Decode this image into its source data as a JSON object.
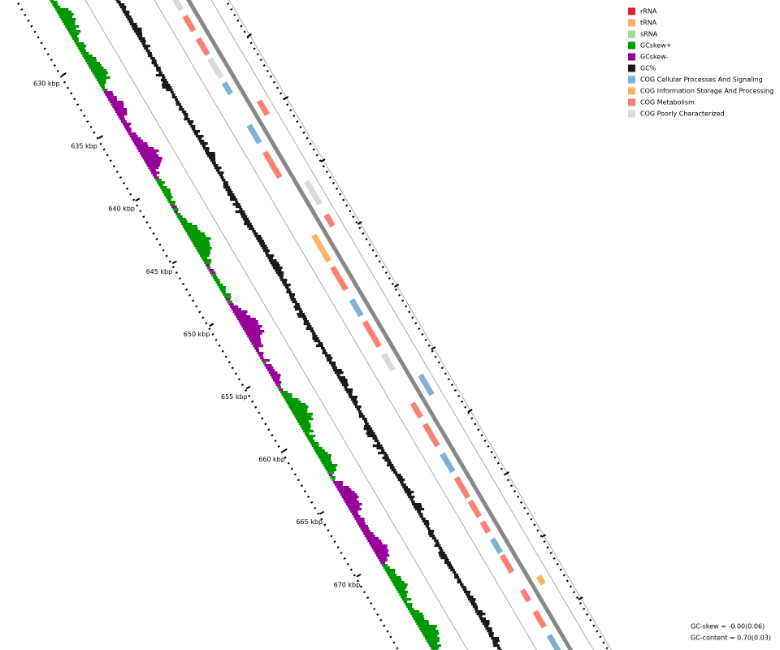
{
  "legend": [
    {
      "label": "rRNA",
      "color": "#d62728"
    },
    {
      "label": "tRNA",
      "color": "#fdae6b"
    },
    {
      "label": "sRNA",
      "color": "#a1d99b"
    },
    {
      "label": "GCskew+",
      "color": "#009900"
    },
    {
      "label": "GCskew-",
      "color": "#990099"
    },
    {
      "label": "GC%",
      "color": "#1a1a1a"
    },
    {
      "label": "COG Cellular Processes And Signaling",
      "color": "#80b1d3"
    },
    {
      "label": "COG Information Storage And Processing",
      "color": "#fdb462"
    },
    {
      "label": "COG Metabolism",
      "color": "#fb8072"
    },
    {
      "label": "COG Poorly Characterized",
      "color": "#d9d9d9"
    }
  ],
  "scale_labels": [
    "630 kbp",
    "635 kbp",
    "640 kbp",
    "645 kbp",
    "650 kbp",
    "655 kbp",
    "660 kbp",
    "665 kbp",
    "670 kbp"
  ],
  "stats": [
    "GC-skew = -0.00(0.06)",
    "GC-content = 0.70(0.03)"
  ]
}
